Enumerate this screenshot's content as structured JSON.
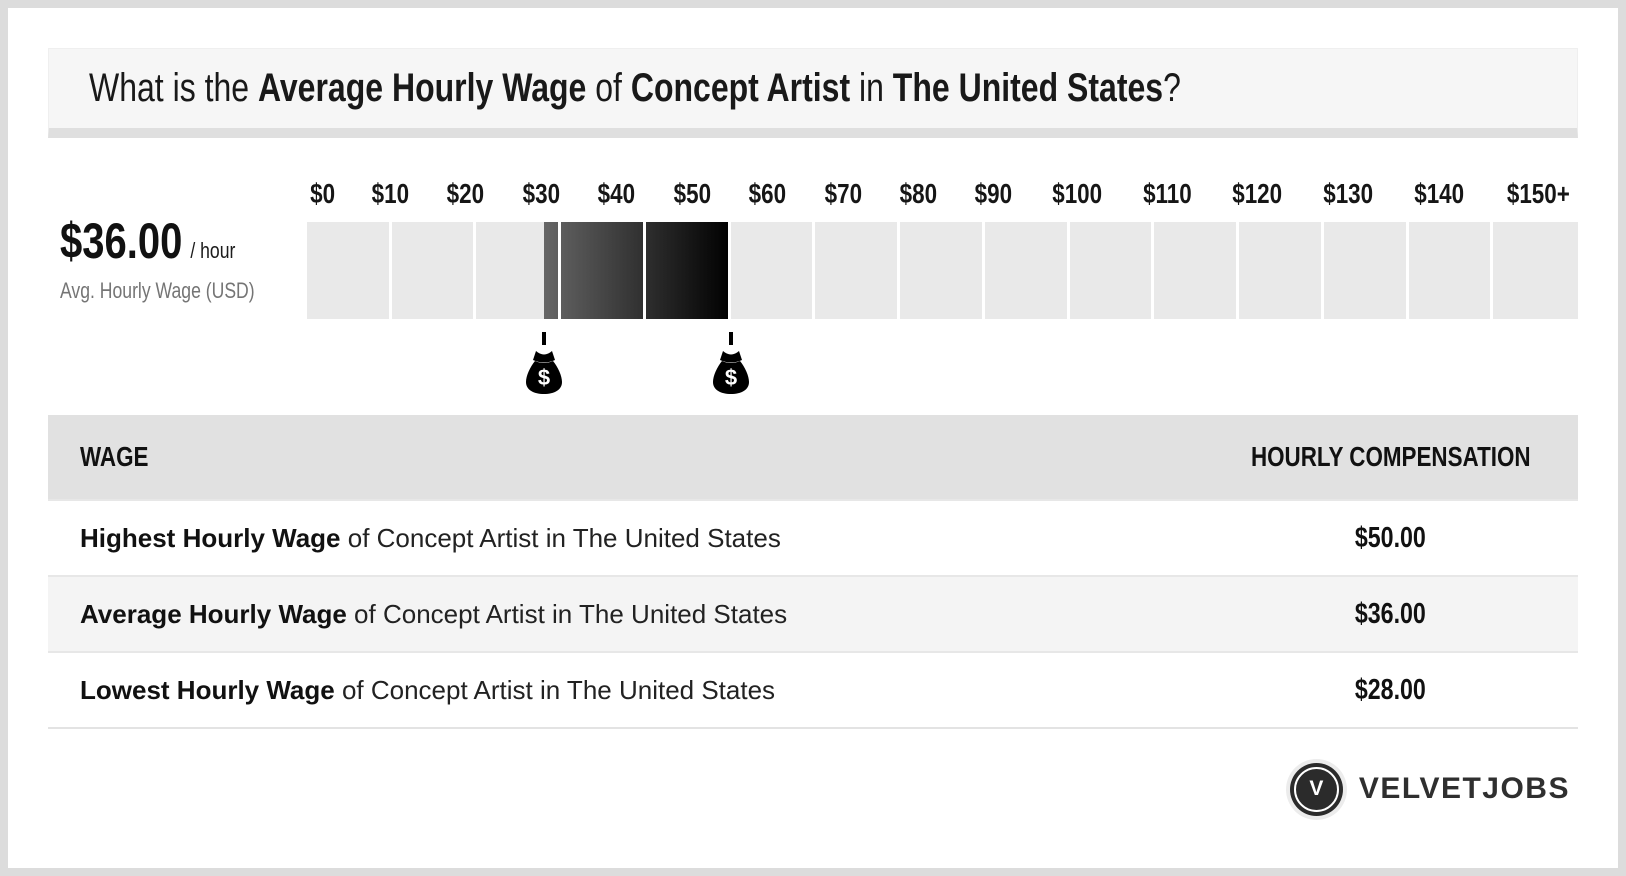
{
  "title": {
    "parts": [
      {
        "text": "What is the ",
        "bold": false
      },
      {
        "text": "Average Hourly Wage",
        "bold": true
      },
      {
        "text": " of ",
        "bold": false
      },
      {
        "text": "Concept Artist",
        "bold": true
      },
      {
        "text": " in ",
        "bold": false
      },
      {
        "text": "The United States",
        "bold": true
      },
      {
        "text": "?",
        "bold": false
      }
    ]
  },
  "wage_info": {
    "amount": "$36.00",
    "per": "/ hour",
    "caption": "Avg. Hourly Wage (USD)"
  },
  "chart_data": {
    "type": "bar",
    "axis": {
      "min": 0,
      "max": 150,
      "step": 10,
      "tick_labels": [
        "$0",
        "$10",
        "$20",
        "$30",
        "$40",
        "$50",
        "$60",
        "$70",
        "$80",
        "$90",
        "$100",
        "$110",
        "$120",
        "$130",
        "$140",
        "$150+"
      ]
    },
    "highlight": {
      "start": 28,
      "end": 50,
      "gradient_from": "#666666",
      "gradient_to": "#000000"
    },
    "markers": [
      {
        "value": 28,
        "icon": "money-bag"
      },
      {
        "value": 50,
        "icon": "money-bag"
      }
    ],
    "lowest_wage": 28,
    "average_wage": 36,
    "highest_wage": 50,
    "segment_color": "#e9e9e9"
  },
  "table": {
    "headers": {
      "wage": "WAGE",
      "compensation": "HOURLY COMPENSATION"
    },
    "rows": [
      {
        "bold": "Highest Hourly Wage",
        "rest": " of Concept Artist in The United States",
        "value": "$50.00"
      },
      {
        "bold": "Average Hourly Wage",
        "rest": " of Concept Artist in The United States",
        "value": "$36.00"
      },
      {
        "bold": "Lowest Hourly Wage",
        "rest": " of Concept Artist in The United States",
        "value": "$28.00"
      }
    ]
  },
  "footer": {
    "logo_letter": "V",
    "brand": "VELVETJOBS"
  },
  "colors": {
    "page_bg": "#dcdcdc",
    "card_bg": "#ffffff",
    "banner_bg": "#f6f6f6",
    "table_header_bg": "#e1e1e1",
    "alt_row_bg": "#f4f4f4",
    "caption_gray": "#757575",
    "logo_dark": "#2b2b2b"
  }
}
